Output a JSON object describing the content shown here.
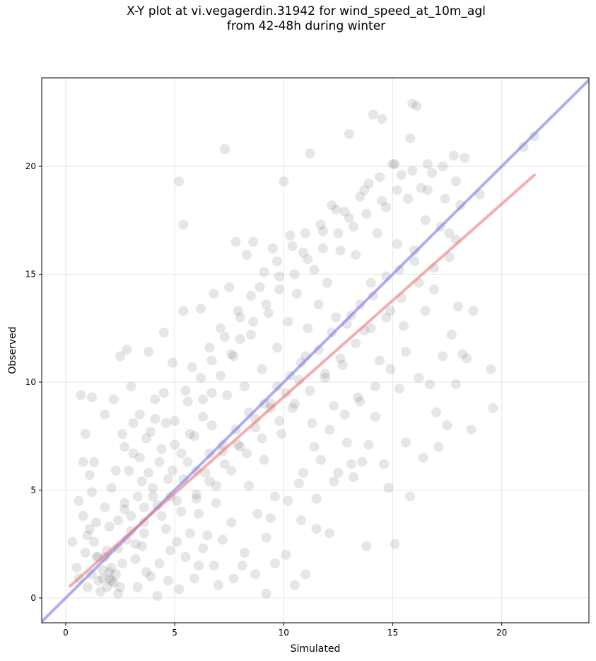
{
  "chart_data": {
    "type": "scatter",
    "title": [
      "X-Y plot at vi.vegagerdin.31942 for wind_speed_at_10m_agl",
      "from 42-48h during winter"
    ],
    "xlabel": "Simulated",
    "ylabel": "Observed",
    "xlim": [
      -1.1,
      24.0
    ],
    "ylim": [
      -1.15,
      24.1
    ],
    "xticks": [
      0,
      5,
      10,
      15,
      20
    ],
    "yticks": [
      0,
      5,
      10,
      15,
      20
    ],
    "grid": true,
    "colors": {
      "points": "#555555",
      "identity_line": "#7777ee",
      "fit_line": "#ee7777"
    },
    "identity_line": {
      "x": [
        -1.1,
        24.0
      ],
      "y": [
        -1.1,
        24.0
      ]
    },
    "fit_line": {
      "x": [
        0.2,
        21.5
      ],
      "y": [
        0.55,
        19.6
      ]
    },
    "points": [
      [
        0.3,
        2.6
      ],
      [
        0.5,
        1.4
      ],
      [
        0.6,
        0.9
      ],
      [
        0.7,
        9.4
      ],
      [
        0.8,
        6.3
      ],
      [
        0.9,
        7.6
      ],
      [
        1.0,
        0.5
      ],
      [
        1.1,
        5.7
      ],
      [
        1.2,
        9.3
      ],
      [
        1.3,
        6.3
      ],
      [
        0.6,
        4.5
      ],
      [
        0.8,
        3.8
      ],
      [
        1.0,
        2.9
      ],
      [
        1.2,
        4.9
      ],
      [
        1.4,
        3.5
      ],
      [
        1.5,
        1.9
      ],
      [
        1.6,
        0.3
      ],
      [
        1.7,
        0.9
      ],
      [
        1.8,
        8.5
      ],
      [
        1.9,
        2.2
      ],
      [
        2.0,
        1.2
      ],
      [
        2.1,
        0.8
      ],
      [
        2.0,
        3.3
      ],
      [
        2.2,
        9.2
      ],
      [
        2.3,
        5.9
      ],
      [
        2.4,
        0.2
      ],
      [
        2.5,
        11.2
      ],
      [
        2.6,
        7.6
      ],
      [
        2.7,
        4.1
      ],
      [
        2.8,
        11.5
      ],
      [
        3.0,
        9.8
      ],
      [
        3.1,
        6.7
      ],
      [
        3.2,
        2.5
      ],
      [
        3.3,
        0.5
      ],
      [
        3.4,
        8.5
      ],
      [
        3.5,
        5.4
      ],
      [
        3.6,
        3.0
      ],
      [
        3.7,
        1.2
      ],
      [
        3.8,
        11.4
      ],
      [
        3.9,
        7.7
      ],
      [
        4.0,
        4.7
      ],
      [
        4.1,
        9.2
      ],
      [
        4.2,
        0.1
      ],
      [
        4.3,
        6.3
      ],
      [
        4.4,
        3.8
      ],
      [
        4.5,
        12.3
      ],
      [
        4.6,
        8.1
      ],
      [
        4.7,
        5.5
      ],
      [
        4.8,
        2.2
      ],
      [
        4.9,
        10.9
      ],
      [
        5.0,
        7.1
      ],
      [
        5.1,
        4.5
      ],
      [
        5.2,
        0.4
      ],
      [
        5.2,
        19.3
      ],
      [
        5.4,
        17.3
      ],
      [
        5.4,
        13.3
      ],
      [
        5.5,
        9.6
      ],
      [
        5.6,
        6.3
      ],
      [
        5.7,
        3.0
      ],
      [
        5.8,
        10.7
      ],
      [
        5.9,
        7.5
      ],
      [
        6.0,
        4.8
      ],
      [
        6.1,
        1.5
      ],
      [
        6.2,
        13.4
      ],
      [
        6.3,
        9.2
      ],
      [
        6.4,
        5.8
      ],
      [
        6.5,
        2.9
      ],
      [
        6.6,
        11.6
      ],
      [
        6.7,
        8.0
      ],
      [
        6.8,
        14.1
      ],
      [
        6.9,
        4.4
      ],
      [
        7.0,
        0.6
      ],
      [
        7.1,
        12.5
      ],
      [
        7.2,
        6.8
      ],
      [
        7.3,
        20.8
      ],
      [
        7.4,
        9.4
      ],
      [
        7.5,
        14.4
      ],
      [
        7.6,
        3.5
      ],
      [
        7.7,
        11.2
      ],
      [
        7.8,
        16.5
      ],
      [
        7.9,
        7.1
      ],
      [
        8.0,
        13.0
      ],
      [
        8.1,
        1.5
      ],
      [
        8.2,
        9.8
      ],
      [
        8.3,
        15.9
      ],
      [
        8.4,
        5.2
      ],
      [
        8.5,
        12.2
      ],
      [
        8.6,
        16.5
      ],
      [
        8.7,
        8.3
      ],
      [
        8.8,
        3.9
      ],
      [
        8.9,
        14.4
      ],
      [
        9.0,
        10.6
      ],
      [
        9.1,
        6.4
      ],
      [
        9.2,
        0.2
      ],
      [
        9.3,
        13.2
      ],
      [
        9.4,
        9.0
      ],
      [
        9.5,
        16.2
      ],
      [
        9.6,
        4.7
      ],
      [
        9.7,
        11.6
      ],
      [
        9.8,
        14.9
      ],
      [
        9.9,
        7.6
      ],
      [
        10.0,
        19.3
      ],
      [
        10.1,
        2.0
      ],
      [
        10.2,
        12.8
      ],
      [
        10.3,
        16.8
      ],
      [
        10.4,
        8.8
      ],
      [
        10.5,
        0.6
      ],
      [
        10.6,
        14.1
      ],
      [
        10.7,
        5.3
      ],
      [
        10.8,
        10.9
      ],
      [
        10.9,
        16.0
      ],
      [
        11.0,
        1.1
      ],
      [
        11.1,
        12.5
      ],
      [
        11.2,
        20.6
      ],
      [
        11.3,
        8.1
      ],
      [
        11.4,
        15.2
      ],
      [
        11.5,
        3.2
      ],
      [
        11.6,
        13.6
      ],
      [
        11.7,
        6.4
      ],
      [
        11.8,
        17.0
      ],
      [
        11.9,
        10.2
      ],
      [
        12.0,
        14.6
      ],
      [
        12.1,
        3.0
      ],
      [
        12.2,
        18.2
      ],
      [
        12.3,
        8.9
      ],
      [
        12.4,
        13.0
      ],
      [
        12.5,
        5.8
      ],
      [
        12.6,
        16.1
      ],
      [
        12.7,
        10.8
      ],
      [
        12.8,
        17.9
      ],
      [
        12.9,
        7.2
      ],
      [
        13.0,
        21.5
      ],
      [
        13.1,
        13.1
      ],
      [
        13.2,
        5.6
      ],
      [
        13.3,
        15.9
      ],
      [
        13.4,
        9.3
      ],
      [
        13.5,
        18.6
      ],
      [
        13.6,
        6.3
      ],
      [
        13.7,
        12.4
      ],
      [
        13.8,
        2.4
      ],
      [
        13.9,
        19.2
      ],
      [
        14.0,
        14.6
      ],
      [
        14.1,
        22.4
      ],
      [
        14.2,
        8.4
      ],
      [
        14.3,
        16.9
      ],
      [
        14.4,
        11.0
      ],
      [
        14.5,
        22.2
      ],
      [
        14.6,
        6.2
      ],
      [
        14.7,
        18.1
      ],
      [
        14.8,
        5.1
      ],
      [
        14.9,
        13.3
      ],
      [
        15.0,
        20.1
      ],
      [
        15.1,
        2.5
      ],
      [
        15.2,
        16.4
      ],
      [
        15.3,
        9.7
      ],
      [
        15.4,
        19.6
      ],
      [
        15.5,
        12.6
      ],
      [
        15.6,
        7.2
      ],
      [
        15.7,
        18.5
      ],
      [
        15.8,
        4.7
      ],
      [
        15.9,
        22.9
      ],
      [
        16.0,
        15.6
      ],
      [
        16.1,
        22.8
      ],
      [
        16.2,
        10.2
      ],
      [
        16.3,
        19.0
      ],
      [
        16.4,
        6.5
      ],
      [
        16.5,
        13.3
      ],
      [
        16.6,
        18.9
      ],
      [
        16.7,
        9.9
      ],
      [
        16.8,
        19.7
      ],
      [
        16.9,
        14.3
      ],
      [
        17.0,
        8.6
      ],
      [
        17.1,
        7.0
      ],
      [
        17.2,
        17.2
      ],
      [
        17.3,
        11.2
      ],
      [
        17.4,
        18.5
      ],
      [
        17.5,
        8.0
      ],
      [
        17.6,
        16.9
      ],
      [
        17.7,
        12.2
      ],
      [
        17.8,
        20.5
      ],
      [
        17.9,
        9.9
      ],
      [
        18.0,
        13.5
      ],
      [
        18.1,
        18.2
      ],
      [
        18.2,
        11.3
      ],
      [
        18.3,
        20.4
      ],
      [
        18.4,
        11.1
      ],
      [
        18.6,
        7.8
      ],
      [
        18.7,
        13.3
      ],
      [
        19.0,
        18.7
      ],
      [
        19.5,
        10.6
      ],
      [
        19.6,
        8.8
      ],
      [
        21.0,
        20.9
      ],
      [
        21.5,
        21.4
      ],
      [
        17.9,
        16.6
      ],
      [
        16.5,
        17.5
      ],
      [
        16.0,
        16.1
      ],
      [
        15.3,
        15.2
      ],
      [
        14.7,
        14.9
      ],
      [
        14.1,
        14.0
      ],
      [
        13.5,
        13.6
      ],
      [
        12.9,
        12.7
      ],
      [
        12.2,
        12.3
      ],
      [
        11.6,
        11.5
      ],
      [
        11.0,
        11.2
      ],
      [
        10.3,
        10.3
      ],
      [
        9.7,
        9.8
      ],
      [
        9.1,
        9.0
      ],
      [
        8.4,
        8.6
      ],
      [
        7.8,
        7.8
      ],
      [
        7.2,
        7.1
      ],
      [
        6.6,
        6.7
      ],
      [
        6.0,
        5.9
      ],
      [
        5.4,
        5.5
      ],
      [
        4.8,
        4.7
      ],
      [
        4.2,
        4.3
      ],
      [
        3.6,
        3.5
      ],
      [
        3.0,
        3.1
      ],
      [
        2.4,
        2.3
      ],
      [
        1.8,
        1.9
      ],
      [
        1.2,
        1.1
      ],
      [
        2.0,
        0.9
      ],
      [
        2.1,
        1.4
      ],
      [
        1.9,
        0.5
      ],
      [
        2.2,
        0.7
      ],
      [
        1.7,
        1.3
      ],
      [
        2.3,
        1.1
      ],
      [
        1.5,
        0.8
      ],
      [
        2.5,
        0.5
      ],
      [
        2.6,
        1.6
      ],
      [
        1.4,
        1.9
      ],
      [
        2.8,
        2.7
      ],
      [
        3.2,
        1.8
      ],
      [
        3.5,
        2.4
      ],
      [
        3.9,
        1.0
      ],
      [
        4.3,
        1.6
      ],
      [
        4.7,
        0.8
      ],
      [
        5.1,
        2.6
      ],
      [
        5.5,
        1.9
      ],
      [
        5.9,
        0.9
      ],
      [
        6.3,
        2.3
      ],
      [
        6.8,
        1.5
      ],
      [
        7.2,
        2.7
      ],
      [
        7.7,
        0.9
      ],
      [
        8.2,
        2.1
      ],
      [
        8.7,
        1.1
      ],
      [
        9.2,
        2.8
      ],
      [
        9.6,
        1.6
      ],
      [
        3.3,
        4.7
      ],
      [
        3.8,
        5.8
      ],
      [
        4.4,
        6.9
      ],
      [
        5.0,
        8.2
      ],
      [
        5.6,
        9.1
      ],
      [
        6.2,
        10.2
      ],
      [
        6.7,
        11.0
      ],
      [
        7.3,
        12.1
      ],
      [
        7.9,
        13.3
      ],
      [
        8.5,
        14.0
      ],
      [
        9.1,
        15.1
      ],
      [
        9.7,
        15.6
      ],
      [
        10.4,
        16.3
      ],
      [
        11.0,
        16.9
      ],
      [
        11.7,
        17.3
      ],
      [
        12.4,
        18.0
      ],
      [
        13.0,
        17.6
      ],
      [
        13.7,
        18.9
      ],
      [
        14.4,
        19.5
      ],
      [
        15.1,
        20.1
      ],
      [
        15.8,
        21.3
      ],
      [
        6.1,
        3.9
      ],
      [
        6.9,
        5.2
      ],
      [
        7.6,
        5.9
      ],
      [
        8.3,
        6.7
      ],
      [
        9.0,
        7.4
      ],
      [
        9.8,
        8.2
      ],
      [
        10.5,
        9.0
      ],
      [
        11.2,
        9.6
      ],
      [
        11.9,
        10.4
      ],
      [
        12.6,
        11.1
      ],
      [
        13.3,
        11.8
      ],
      [
        14.0,
        12.5
      ],
      [
        14.7,
        13.0
      ],
      [
        15.4,
        13.9
      ],
      [
        16.2,
        14.6
      ],
      [
        16.9,
        15.3
      ],
      [
        17.6,
        15.8
      ],
      [
        10.9,
        5.8
      ],
      [
        11.4,
        7.0
      ],
      [
        12.1,
        7.8
      ],
      [
        12.8,
        8.5
      ],
      [
        13.5,
        9.1
      ],
      [
        14.2,
        9.8
      ],
      [
        14.9,
        10.6
      ],
      [
        15.6,
        11.4
      ],
      [
        9.4,
        3.7
      ],
      [
        10.2,
        4.5
      ],
      [
        10.8,
        3.6
      ],
      [
        11.5,
        4.6
      ],
      [
        12.3,
        5.4
      ],
      [
        13.1,
        6.2
      ],
      [
        13.9,
        7.1
      ],
      [
        4.6,
        3.2
      ],
      [
        5.3,
        4.0
      ],
      [
        6.0,
        4.6
      ],
      [
        6.6,
        5.4
      ],
      [
        7.3,
        6.2
      ],
      [
        8.0,
        7.0
      ],
      [
        8.7,
        7.9
      ],
      [
        9.4,
        8.8
      ],
      [
        10.1,
        9.5
      ],
      [
        10.7,
        10.1
      ],
      [
        2.9,
        5.9
      ],
      [
        3.4,
        6.5
      ],
      [
        3.7,
        7.4
      ],
      [
        4.1,
        8.3
      ],
      [
        4.5,
        9.5
      ],
      [
        2.7,
        7.0
      ],
      [
        3.1,
        8.1
      ],
      [
        2.1,
        5.1
      ],
      [
        1.8,
        4.2
      ],
      [
        1.1,
        3.2
      ],
      [
        0.9,
        2.1
      ],
      [
        1.3,
        2.6
      ],
      [
        2.4,
        3.6
      ],
      [
        2.7,
        4.4
      ],
      [
        3.0,
        3.8
      ],
      [
        3.6,
        4.2
      ],
      [
        4.0,
        5.1
      ],
      [
        4.9,
        5.9
      ],
      [
        5.3,
        6.7
      ],
      [
        5.7,
        7.6
      ],
      [
        6.3,
        8.4
      ],
      [
        6.7,
        9.5
      ],
      [
        7.1,
        10.3
      ],
      [
        7.6,
        11.3
      ],
      [
        8.0,
        12.0
      ],
      [
        8.6,
        12.8
      ],
      [
        9.2,
        13.6
      ],
      [
        9.8,
        14.3
      ],
      [
        10.5,
        15.0
      ],
      [
        11.1,
        15.7
      ],
      [
        11.8,
        16.2
      ],
      [
        12.5,
        16.9
      ],
      [
        13.2,
        17.2
      ],
      [
        13.8,
        17.8
      ],
      [
        14.5,
        18.4
      ],
      [
        15.2,
        18.9
      ],
      [
        15.9,
        19.8
      ],
      [
        16.6,
        20.1
      ],
      [
        17.3,
        20.0
      ],
      [
        17.9,
        19.3
      ]
    ]
  }
}
